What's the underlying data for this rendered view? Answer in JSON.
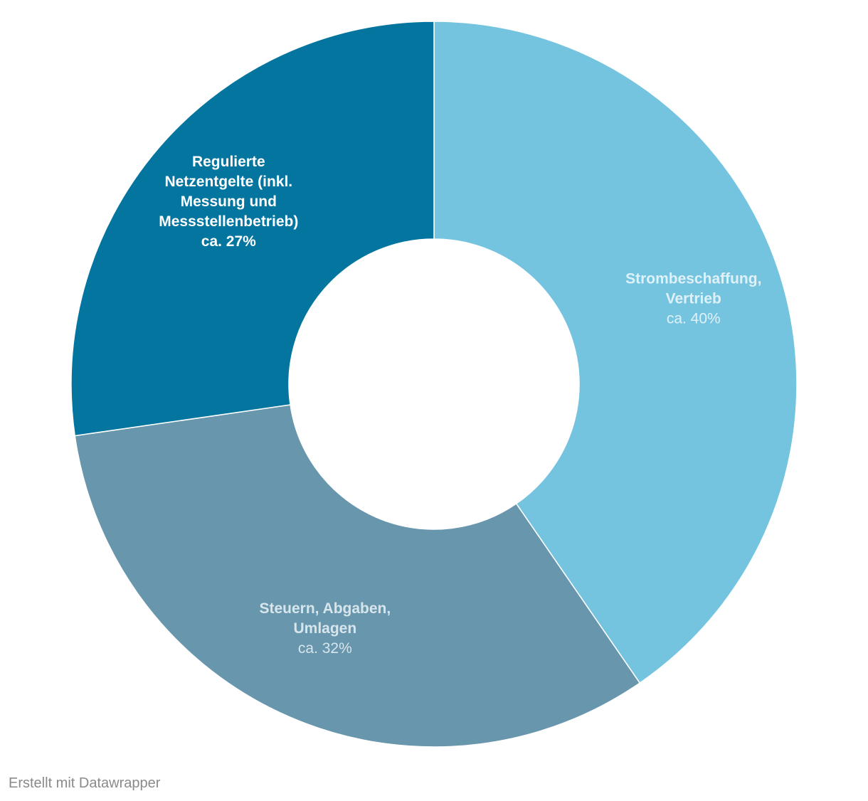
{
  "chart_data": {
    "type": "pie",
    "donut": true,
    "slices": [
      {
        "name_lines": [
          "Strombeschaffung,",
          "Vertrieb"
        ],
        "value_label": "ca. 40%",
        "value": 40,
        "color": "#75c4df",
        "label_name_color": "#dff1f8",
        "label_value_color": "#dff1f8",
        "label_value_bold": false
      },
      {
        "name_lines": [
          "Steuern, Abgaben,",
          "Umlagen"
        ],
        "value_label": "ca. 32%",
        "value": 32,
        "color": "#6796ad",
        "label_name_color": "#d7e5ec",
        "label_value_color": "#d7e5ec",
        "label_value_bold": false
      },
      {
        "name_lines": [
          "Regulierte",
          "Netzentgelte (inkl.",
          "Messung und",
          "Messstellenbetrieb)"
        ],
        "value_label": "ca. 27%",
        "value": 27,
        "color": "#04759f",
        "label_name_color": "#ffffff",
        "label_value_color": "#ffffff",
        "label_value_bold": true
      }
    ]
  },
  "footer": {
    "credit": "Erstellt mit Datawrapper"
  }
}
